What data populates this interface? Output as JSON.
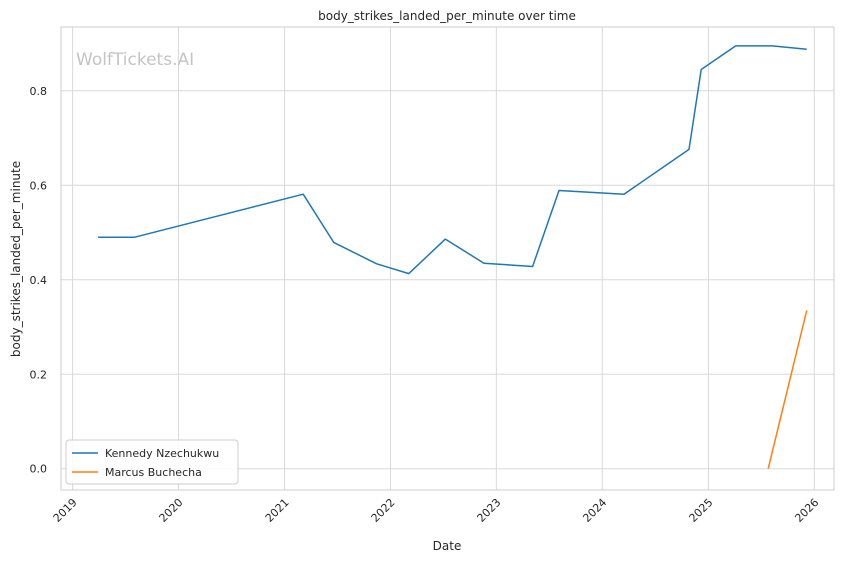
{
  "chart_data": {
    "type": "line",
    "title": "body_strikes_landed_per_minute over time",
    "xlabel": "Date",
    "ylabel": "body_strikes_landed_per_minute",
    "watermark": "WolfTickets.AI",
    "xlim": [
      "2018-11-22",
      "2026-03-10"
    ],
    "ylim": [
      -0.045,
      0.935
    ],
    "x_ticks": [
      "2019",
      "2020",
      "2021",
      "2022",
      "2023",
      "2024",
      "2025",
      "2026"
    ],
    "y_ticks": [
      "0.0",
      "0.2",
      "0.4",
      "0.6",
      "0.8"
    ],
    "grid": true,
    "legend_position": "lower-left",
    "series": [
      {
        "name": "Kennedy Nzechukwu",
        "color": "#1f77b4",
        "points": [
          {
            "x": "2019-03-30",
            "y": 0.49
          },
          {
            "x": "2019-08-03",
            "y": 0.49
          },
          {
            "x": "2021-03-06",
            "y": 0.581
          },
          {
            "x": "2021-06-19",
            "y": 0.479
          },
          {
            "x": "2021-11-13",
            "y": 0.434
          },
          {
            "x": "2022-03-05",
            "y": 0.413
          },
          {
            "x": "2022-07-09",
            "y": 0.486
          },
          {
            "x": "2022-11-19",
            "y": 0.435
          },
          {
            "x": "2023-05-06",
            "y": 0.428
          },
          {
            "x": "2023-08-05",
            "y": 0.589
          },
          {
            "x": "2024-03-16",
            "y": 0.581
          },
          {
            "x": "2024-10-26",
            "y": 0.676
          },
          {
            "x": "2024-12-07",
            "y": 0.845
          },
          {
            "x": "2025-04-05",
            "y": 0.895
          },
          {
            "x": "2025-08-09",
            "y": 0.895
          },
          {
            "x": "2025-12-06",
            "y": 0.888
          }
        ]
      },
      {
        "name": "Marcus Buchecha",
        "color": "#ff7f0e",
        "points": [
          {
            "x": "2025-07-26",
            "y": 0.0
          },
          {
            "x": "2025-12-06",
            "y": 0.335
          }
        ]
      }
    ]
  }
}
